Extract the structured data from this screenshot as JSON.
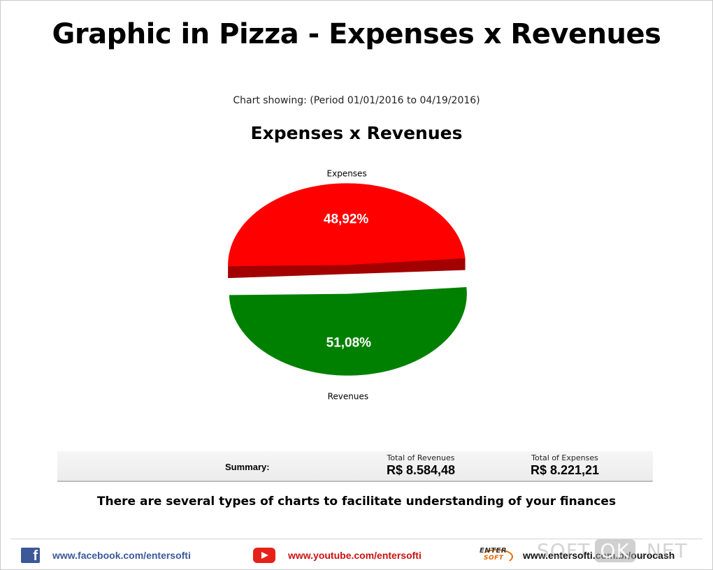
{
  "page": {
    "title": "Graphic in Pizza - Expenses x Revenues",
    "period": "Chart showing: (Period 01/01/2016 to 04/19/2016)",
    "tagline": "There are several types of charts to facilitate understanding of your finances"
  },
  "chart_data": {
    "type": "pie",
    "title": "Expenses x Revenues",
    "slices": [
      {
        "label": "Expenses",
        "value": 48.92,
        "display": "48,92%",
        "color": "#ff0000",
        "side_color": "#a30000"
      },
      {
        "label": "Revenues",
        "value": 51.08,
        "display": "51,08%",
        "color": "#008000",
        "side_color": "#005400"
      }
    ],
    "exploded": true,
    "three_d": true
  },
  "summary": {
    "label": "Summary:",
    "revenues_label": "Total of Revenues",
    "revenues_value": "R$ 8.584,48",
    "expenses_label": "Total of Expenses",
    "expenses_value": "R$ 8.221,21"
  },
  "footer": {
    "facebook": "www.facebook.com/entersofti",
    "youtube": "www.youtube.com/entersofti",
    "site": "www.entersofti.com.br/ourocash",
    "logo_top": "ENTER",
    "logo_bottom": "SOFT",
    "watermark_a": "SOFT",
    "watermark_b": "OK",
    "watermark_c": ".NET"
  },
  "colors": {
    "facebook": "#3b5998",
    "youtube": "#cc1111",
    "brand_orange": "#e66a00"
  }
}
